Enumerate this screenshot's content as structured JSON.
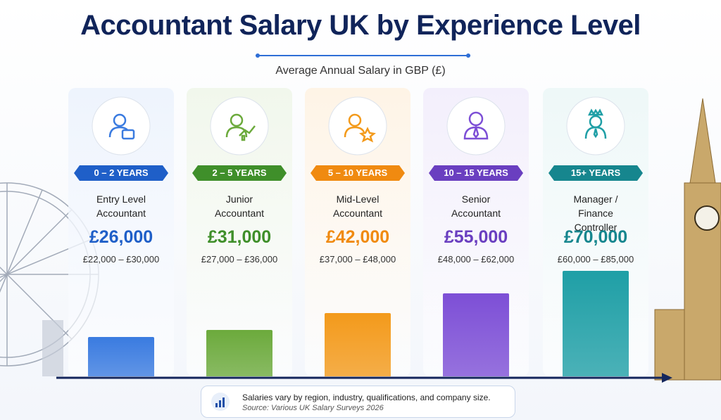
{
  "chart_data": {
    "type": "bar",
    "title": "Accountant Salary UK by Experience Level",
    "subtitle": "Average Annual Salary in GBP (£)",
    "experience": [
      "0 – 2 YEARS",
      "2 – 5 YEARS",
      "5 – 10 YEARS",
      "10 – 15 YEARS",
      "15+ YEARS"
    ],
    "categories": [
      "Entry Level Accountant",
      "Junior Accountant",
      "Mid-Level Accountant",
      "Senior Accountant",
      "Manager / Finance Controller"
    ],
    "values": [
      26000,
      31000,
      42000,
      55000,
      70000
    ],
    "value_labels": [
      "£26,000",
      "£31,000",
      "£42,000",
      "£55,000",
      "£70,000"
    ],
    "ranges": [
      "£22,000 – £30,000",
      "£27,000 – £36,000",
      "£37,000 – £48,000",
      "£48,000 – £62,000",
      "£60,000 – £85,000"
    ],
    "colors": [
      "#3a7be0",
      "#6caa3c",
      "#f39a1b",
      "#7d4fd6",
      "#1f9fa6"
    ],
    "note": "Salaries vary by region, industry, qualifications, and company size.",
    "source": "Source: Various UK Salary Surveys 2026"
  }
}
